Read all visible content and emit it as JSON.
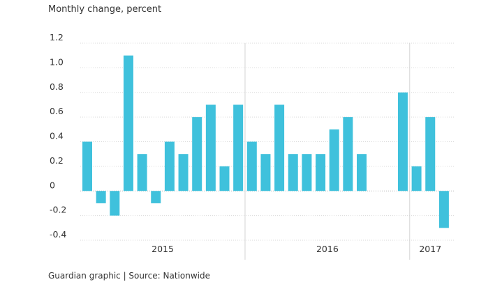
{
  "subtitle": "Monthly change, percent",
  "source": "Guardian graphic | Source: Nationwide",
  "chart_data": {
    "type": "bar",
    "title": "",
    "ylabel": "Monthly change, percent",
    "xlabel": "",
    "ylim": [
      -0.4,
      1.2
    ],
    "yticks": [
      1.2,
      1.0,
      0.8,
      0.6,
      0.4,
      0.2,
      0,
      -0.2,
      -0.4
    ],
    "ytick_labels": [
      "1.2",
      "1.0",
      "0.8",
      "0.6",
      "0.4",
      "0.2",
      "0",
      "-0.2",
      "-0.4"
    ],
    "grid": true,
    "bar_color": "#3fc1dc",
    "x_group_labels": [
      {
        "label": "2015",
        "center_index": 5.5
      },
      {
        "label": "2016",
        "center_index": 17.5
      },
      {
        "label": "2017",
        "center_index": 25
      }
    ],
    "year_dividers_after_index": [
      11,
      23
    ],
    "values": [
      0.4,
      -0.1,
      -0.2,
      1.1,
      0.3,
      -0.1,
      0.4,
      0.3,
      0.6,
      0.7,
      0.2,
      0.7,
      0.4,
      0.3,
      0.7,
      0.3,
      0.3,
      0.3,
      0.5,
      0.6,
      0.3,
      0,
      0,
      0.8,
      0.2,
      0.6,
      -0.3
    ]
  }
}
